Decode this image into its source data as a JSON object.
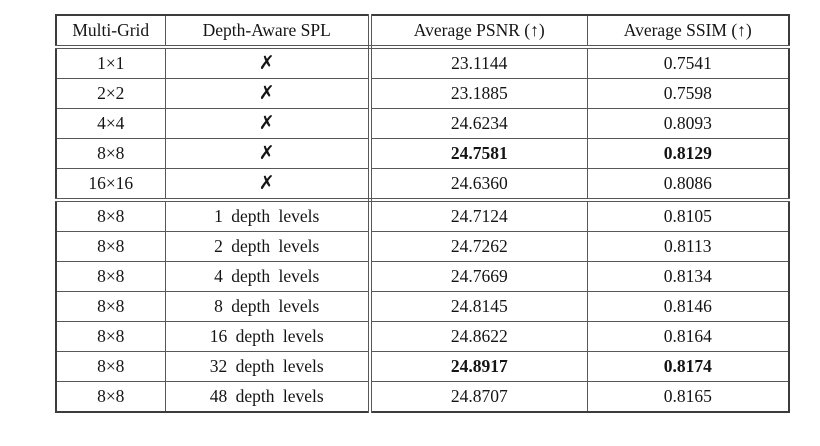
{
  "table": {
    "columns": [
      {
        "label": "Multi-Grid"
      },
      {
        "label": "Depth-Aware SPL"
      },
      {
        "label": "Average PSNR (↑)"
      },
      {
        "label": "Average SSIM (↑)"
      }
    ],
    "sections": [
      {
        "name": "multi-grid-ablation",
        "rows": [
          {
            "grid": "1×1",
            "spl": "✗",
            "cross": true,
            "psnr": "23.1144",
            "ssim": "0.7541",
            "bold": false
          },
          {
            "grid": "2×2",
            "spl": "✗",
            "cross": true,
            "psnr": "23.1885",
            "ssim": "0.7598",
            "bold": false
          },
          {
            "grid": "4×4",
            "spl": "✗",
            "cross": true,
            "psnr": "24.6234",
            "ssim": "0.8093",
            "bold": false
          },
          {
            "grid": "8×8",
            "spl": "✗",
            "cross": true,
            "psnr": "24.7581",
            "ssim": "0.8129",
            "bold": true
          },
          {
            "grid": "16×16",
            "spl": "✗",
            "cross": true,
            "psnr": "24.6360",
            "ssim": "0.8086",
            "bold": false
          }
        ]
      },
      {
        "name": "depth-levels-ablation",
        "rows": [
          {
            "grid": "8×8",
            "spl": "1 depth levels",
            "cross": false,
            "psnr": "24.7124",
            "ssim": "0.8105",
            "bold": false
          },
          {
            "grid": "8×8",
            "spl": "2 depth levels",
            "cross": false,
            "psnr": "24.7262",
            "ssim": "0.8113",
            "bold": false
          },
          {
            "grid": "8×8",
            "spl": "4 depth levels",
            "cross": false,
            "psnr": "24.7669",
            "ssim": "0.8134",
            "bold": false
          },
          {
            "grid": "8×8",
            "spl": "8 depth levels",
            "cross": false,
            "psnr": "24.8145",
            "ssim": "0.8146",
            "bold": false
          },
          {
            "grid": "8×8",
            "spl": "16 depth levels",
            "cross": false,
            "psnr": "24.8622",
            "ssim": "0.8164",
            "bold": false
          },
          {
            "grid": "8×8",
            "spl": "32 depth levels",
            "cross": false,
            "psnr": "24.8917",
            "ssim": "0.8174",
            "bold": true
          },
          {
            "grid": "8×8",
            "spl": "48 depth levels",
            "cross": false,
            "psnr": "24.8707",
            "ssim": "0.8165",
            "bold": false
          }
        ]
      }
    ]
  },
  "icons": {
    "cross_icon": "✗",
    "up_arrow_icon": "↑"
  },
  "colors": {
    "background": "#ffffff",
    "text": "#141414",
    "grid_line": "#585858",
    "outer_border": "#3c3c3c"
  }
}
